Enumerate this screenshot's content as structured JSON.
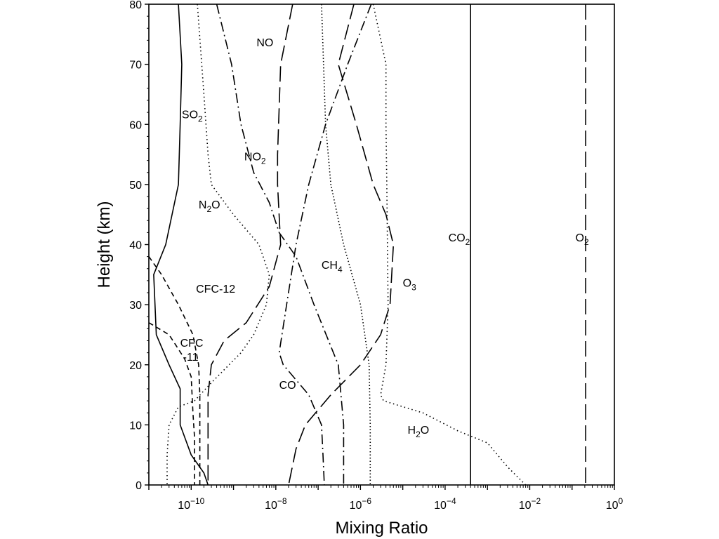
{
  "chart_data": {
    "type": "line",
    "title": "",
    "xlabel": "Mixing Ratio",
    "ylabel": "Height (km)",
    "xscale": "log",
    "xlim": [
      1e-11,
      1
    ],
    "ylim": [
      0,
      80
    ],
    "grid": false,
    "legend": "none (labels placed on curves)",
    "x_ticks": [
      {
        "value": 1e-10,
        "mantissa": "10",
        "exp": "−10"
      },
      {
        "value": 1e-08,
        "mantissa": "10",
        "exp": "−8"
      },
      {
        "value": 1e-06,
        "mantissa": "10",
        "exp": "−6"
      },
      {
        "value": 0.0001,
        "mantissa": "10",
        "exp": "−4"
      },
      {
        "value": 0.01,
        "mantissa": "10",
        "exp": "−2"
      },
      {
        "value": 1,
        "mantissa": "10",
        "exp": "0"
      }
    ],
    "y_ticks": [
      0,
      10,
      20,
      30,
      40,
      50,
      60,
      70,
      80
    ],
    "series": [
      {
        "id": "so2",
        "dash": "solid",
        "label": {
          "main": "SO",
          "sub": "2",
          "tail": "",
          "x": 6e-11,
          "y": 61
        },
        "points": [
          [
            5e-11,
            80
          ],
          [
            6e-11,
            70
          ],
          [
            5.5e-11,
            60
          ],
          [
            5e-11,
            50
          ],
          [
            2.5e-11,
            40
          ],
          [
            1.3e-11,
            35
          ],
          [
            1.5e-11,
            25
          ],
          [
            3e-11,
            20
          ],
          [
            5.5e-11,
            16
          ],
          [
            5.5e-11,
            10
          ],
          [
            1e-10,
            5
          ],
          [
            2e-10,
            2
          ],
          [
            2.5e-10,
            0
          ]
        ]
      },
      {
        "id": "n2o",
        "dash": "dot",
        "label": {
          "main": "N",
          "sub": "2",
          "tail": "O",
          "x": 1.5e-10,
          "y": 46
        },
        "points": [
          [
            1.4e-10,
            80
          ],
          [
            2e-10,
            65
          ],
          [
            2.5e-10,
            55
          ],
          [
            3e-10,
            50
          ],
          [
            1e-09,
            45
          ],
          [
            4e-09,
            40
          ],
          [
            7e-09,
            35
          ],
          [
            6e-09,
            30
          ],
          [
            3e-09,
            25
          ],
          [
            1.5e-09,
            22
          ],
          [
            3e-10,
            17
          ],
          [
            1.2e-10,
            14
          ],
          [
            5e-11,
            13
          ],
          [
            3e-11,
            10
          ],
          [
            2.7e-11,
            5
          ],
          [
            2.7e-11,
            0
          ]
        ]
      },
      {
        "id": "no2",
        "dash": "dashdot",
        "label": {
          "main": "NO",
          "sub": "2",
          "tail": "",
          "x": 1.8e-09,
          "y": 54
        },
        "points": [
          [
            4e-10,
            80
          ],
          [
            9e-10,
            70
          ],
          [
            1.5e-09,
            60
          ],
          [
            3e-09,
            52
          ],
          [
            7e-09,
            47
          ],
          [
            1.2e-08,
            42
          ],
          [
            3e-08,
            38
          ],
          [
            8e-08,
            30
          ],
          [
            3e-07,
            20
          ],
          [
            4e-07,
            10
          ],
          [
            4e-07,
            0
          ]
        ]
      },
      {
        "id": "no",
        "dash": "longdash",
        "label": {
          "main": "NO",
          "sub": "",
          "tail": "",
          "x": 3.5e-09,
          "y": 73
        },
        "points": [
          [
            2.5e-08,
            80
          ],
          [
            1.3e-08,
            70
          ],
          [
            1.1e-08,
            55
          ],
          [
            1.1e-08,
            50
          ],
          [
            1.3e-08,
            40
          ],
          [
            7e-09,
            33
          ],
          [
            2e-09,
            27
          ],
          [
            6e-10,
            24
          ],
          [
            3e-10,
            20
          ],
          [
            2.5e-10,
            15
          ],
          [
            2.5e-10,
            10
          ],
          [
            2.5e-10,
            0
          ]
        ]
      },
      {
        "id": "ch4",
        "dash": "shortdot",
        "label": {
          "main": "CH",
          "sub": "4",
          "tail": "",
          "x": 1.2e-07,
          "y": 36
        },
        "points": [
          [
            1.2e-07,
            80
          ],
          [
            1.5e-07,
            60
          ],
          [
            2e-07,
            50
          ],
          [
            4e-07,
            40
          ],
          [
            1e-06,
            30
          ],
          [
            1.6e-06,
            20
          ],
          [
            1.7e-06,
            10
          ],
          [
            1.7e-06,
            0
          ]
        ]
      },
      {
        "id": "co",
        "dash": "dashdot",
        "label": {
          "main": "CO",
          "sub": "",
          "tail": "",
          "x": 1.2e-08,
          "y": 16
        },
        "points": [
          [
            1.8e-06,
            80
          ],
          [
            5e-07,
            70
          ],
          [
            1.5e-07,
            60
          ],
          [
            6e-08,
            50
          ],
          [
            3e-08,
            40
          ],
          [
            1.8e-08,
            30
          ],
          [
            1.2e-08,
            22
          ],
          [
            1.5e-08,
            20
          ],
          [
            6e-08,
            15
          ],
          [
            1.2e-07,
            10
          ],
          [
            1.3e-07,
            5
          ],
          [
            1.4e-07,
            0
          ]
        ]
      },
      {
        "id": "cfc12",
        "dash": "shortdash",
        "label": {
          "main": "CFC-12",
          "sub": "",
          "tail": "",
          "x": 1.3e-10,
          "y": 32
        },
        "points": [
          [
            1e-11,
            38
          ],
          [
            2e-11,
            35
          ],
          [
            5e-11,
            30
          ],
          [
            1.1e-10,
            25
          ],
          [
            1.5e-10,
            20
          ],
          [
            1.6e-10,
            15
          ],
          [
            1.6e-10,
            10
          ],
          [
            1.6e-10,
            0
          ]
        ]
      },
      {
        "id": "cfc11",
        "dash": "shortdash",
        "label": {
          "main": "CFC",
          "sub": "",
          "tail": "",
          "line2": "-11",
          "x": 5.5e-11,
          "y": 23
        },
        "points": [
          [
            1e-11,
            27
          ],
          [
            3e-11,
            25
          ],
          [
            7e-11,
            21
          ],
          [
            1e-10,
            18
          ],
          [
            1.1e-10,
            12
          ],
          [
            1.2e-10,
            8
          ],
          [
            1.2e-10,
            0
          ]
        ]
      },
      {
        "id": "o3",
        "dash": "longdash",
        "label": {
          "main": "O",
          "sub": "3",
          "tail": "",
          "x": 1e-05,
          "y": 33
        },
        "points": [
          [
            7e-07,
            80
          ],
          [
            3e-07,
            70
          ],
          [
            8e-07,
            60
          ],
          [
            2e-06,
            50
          ],
          [
            4e-06,
            45
          ],
          [
            6e-06,
            40
          ],
          [
            5e-06,
            30
          ],
          [
            3e-06,
            25
          ],
          [
            1e-06,
            20
          ],
          [
            2e-07,
            15
          ],
          [
            5e-08,
            10
          ],
          [
            3e-08,
            6
          ],
          [
            2e-08,
            0
          ]
        ]
      },
      {
        "id": "h2o",
        "dash": "dot",
        "label": {
          "main": "H",
          "sub": "2",
          "tail": "O",
          "x": 1.3e-05,
          "y": 8.5
        },
        "points": [
          [
            2e-06,
            80
          ],
          [
            4e-06,
            70
          ],
          [
            4e-06,
            60
          ],
          [
            4.2e-06,
            50
          ],
          [
            4.5e-06,
            30
          ],
          [
            4e-06,
            20
          ],
          [
            3e-06,
            15
          ],
          [
            3.5e-06,
            14
          ],
          [
            3e-05,
            12
          ],
          [
            0.0002,
            9
          ],
          [
            0.001,
            7
          ],
          [
            0.003,
            3
          ],
          [
            0.008,
            0
          ]
        ]
      },
      {
        "id": "co2",
        "dash": "solid",
        "label": {
          "main": "CO",
          "sub": "2",
          "tail": "",
          "x": 0.00012,
          "y": 40.5
        },
        "points": [
          [
            0.0004,
            80
          ],
          [
            0.0004,
            0
          ]
        ]
      },
      {
        "id": "o2",
        "dash": "longdash",
        "label": {
          "main": "O",
          "sub": "2",
          "tail": "",
          "x": 0.12,
          "y": 40.5
        },
        "points": [
          [
            0.21,
            80
          ],
          [
            0.21,
            0
          ]
        ]
      }
    ]
  }
}
